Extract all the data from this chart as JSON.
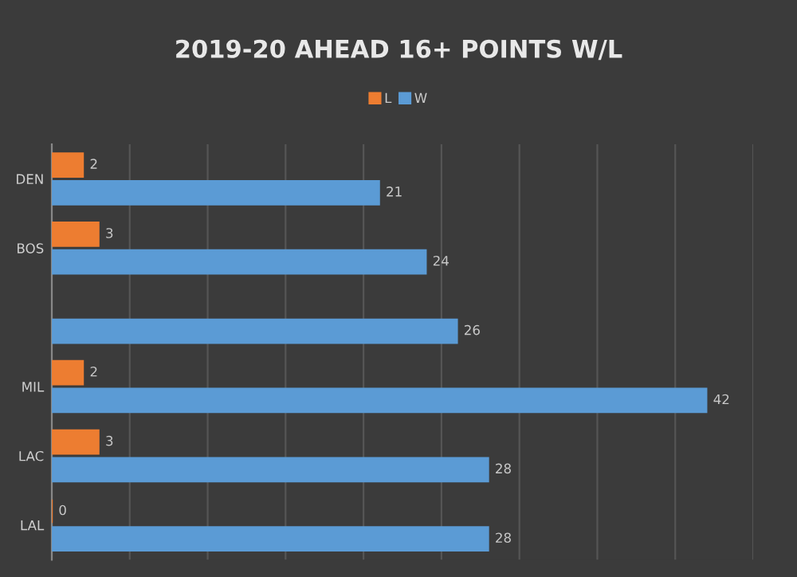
{
  "chart_data": {
    "type": "bar",
    "orientation": "horizontal",
    "title": "2019-20 AHEAD 16+ POINTS W/L",
    "categories": [
      "DEN",
      "BOS",
      null,
      "MIL",
      "LAC",
      "LAL"
    ],
    "series": [
      {
        "name": "L",
        "color": "#ed7d31",
        "values": [
          2,
          3,
          null,
          2,
          3,
          0
        ]
      },
      {
        "name": "W",
        "color": "#5b9bd5",
        "values": [
          21,
          24,
          26,
          42,
          28,
          28
        ]
      }
    ],
    "xlim": [
      0,
      45
    ],
    "xticks": [
      {
        "value": 0,
        "label": null
      },
      {
        "value": 5,
        "label": null
      },
      {
        "value": 10,
        "label": null
      },
      {
        "value": 15,
        "label": null
      },
      {
        "value": 20,
        "label": null
      },
      {
        "value": 25,
        "label": null
      },
      {
        "value": 30,
        "label": null
      },
      {
        "value": 35,
        "label": null
      },
      {
        "value": 40,
        "label": null
      },
      {
        "value": 45,
        "label": null
      }
    ],
    "grid": "x",
    "legend": "top",
    "tick_labels": "y",
    "data_labels": true
  }
}
